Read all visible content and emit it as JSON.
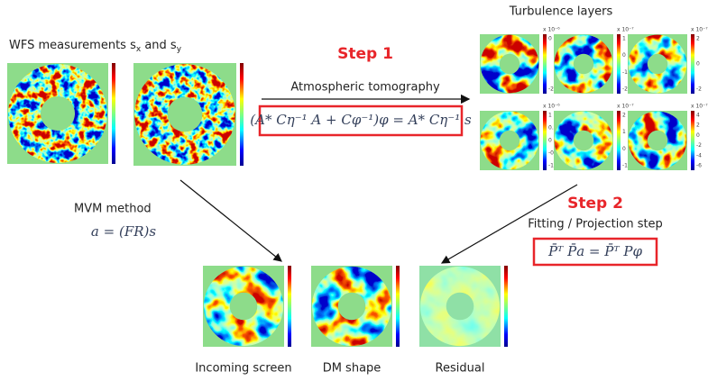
{
  "wfs": {
    "title_parts": [
      "WFS measurements s",
      "x",
      " and s",
      "y"
    ]
  },
  "step1": {
    "label": "Step 1",
    "method": "Atmospheric tomography",
    "formula": "(A* Cη⁻¹ A + Cφ⁻¹)φ = A* Cη⁻¹ s"
  },
  "layers": {
    "title": "Turbulence layers",
    "scales": [
      "x 10⁻⁶",
      "x 10⁻⁷",
      "x 10⁻⁷",
      "x 10⁻⁶",
      "x 10⁻⁷",
      "x 10⁻⁷"
    ],
    "ticks": [
      [
        "0",
        "-2"
      ],
      [
        "1",
        "0",
        "-1",
        "-2"
      ],
      [
        "2",
        "0",
        "-2"
      ],
      [
        "1",
        "0.5",
        "0",
        "-0.5",
        "-1"
      ],
      [
        "2",
        "1",
        "0",
        "-1"
      ],
      [
        "4",
        "2",
        "0",
        "-2",
        "-4",
        "-6"
      ]
    ]
  },
  "mvm": {
    "label": "MVM method",
    "formula": "a = (FR)s"
  },
  "step2": {
    "label": "Step 2",
    "method": "Fitting / Projection step",
    "formula": "P̄ᵀ P̄a = P̄ᵀ Pφ"
  },
  "outputs": [
    "Incoming screen",
    "DM shape",
    "Residual"
  ]
}
